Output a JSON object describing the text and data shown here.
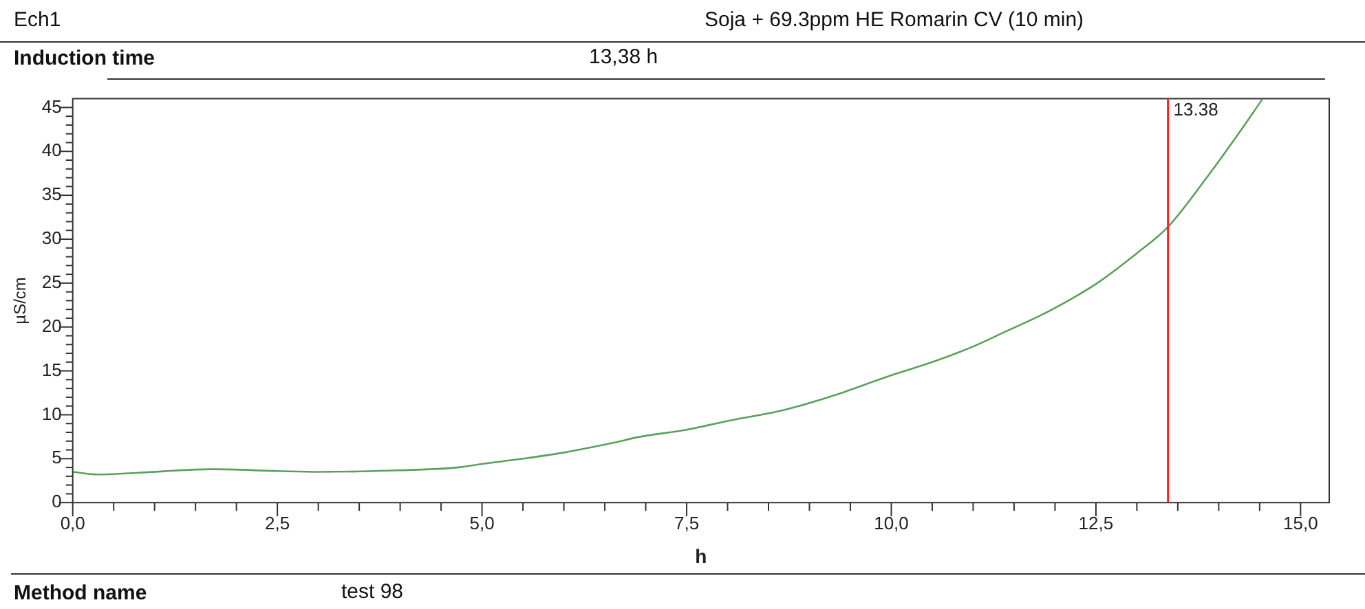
{
  "chart_data": {
    "type": "line",
    "title": "Ech1",
    "subtitle": "Soja + 69.3ppm HE Romarin CV (10 min)",
    "xlabel": "h",
    "ylabel": "µS/cm",
    "annotations": [
      "Induction time",
      "13,38 h",
      "Method name",
      "test 98"
    ],
    "x": [
      0,
      0.3,
      0.8,
      1.7,
      2.5,
      3.0,
      3.7,
      4.7,
      5.0,
      5.5,
      6.0,
      6.6,
      6.93,
      7.5,
      8.0,
      8.67,
      9.3,
      10.0,
      10.5,
      10.98,
      11.4,
      11.84,
      12.2,
      12.5,
      13.0,
      13.38,
      13.86,
      14.21,
      14.53
    ],
    "series": [
      {
        "color": "#5aa05a",
        "values": [
          3.5,
          3.2,
          3.4,
          3.8,
          3.6,
          3.5,
          3.6,
          4.0,
          4.4,
          5.0,
          5.7,
          6.8,
          7.5,
          8.3,
          9.3,
          10.5,
          12.2,
          14.5,
          16.0,
          17.7,
          19.5,
          21.4,
          23.2,
          24.9,
          28.4,
          31.4,
          37.1,
          41.6,
          45.9
        ]
      }
    ],
    "xlim": [
      0,
      15.35
    ],
    "ylim": [
      0,
      46
    ],
    "xticks": [
      {
        "value": 0,
        "label": "0,0"
      },
      {
        "value": 0.5,
        "label": null
      },
      {
        "value": 1,
        "label": null
      },
      {
        "value": 1.5,
        "label": null
      },
      {
        "value": 2,
        "label": null
      },
      {
        "value": 2.5,
        "label": "2,5"
      },
      {
        "value": 3,
        "label": null
      },
      {
        "value": 3.5,
        "label": null
      },
      {
        "value": 4,
        "label": null
      },
      {
        "value": 4.5,
        "label": null
      },
      {
        "value": 5,
        "label": "5,0"
      },
      {
        "value": 5.5,
        "label": null
      },
      {
        "value": 6,
        "label": null
      },
      {
        "value": 6.5,
        "label": null
      },
      {
        "value": 7,
        "label": null
      },
      {
        "value": 7.5,
        "label": "7,5"
      },
      {
        "value": 8,
        "label": null
      },
      {
        "value": 8.5,
        "label": null
      },
      {
        "value": 9,
        "label": null
      },
      {
        "value": 9.5,
        "label": null
      },
      {
        "value": 10,
        "label": "10,0"
      },
      {
        "value": 10.5,
        "label": null
      },
      {
        "value": 11,
        "label": null
      },
      {
        "value": 11.5,
        "label": null
      },
      {
        "value": 12,
        "label": null
      },
      {
        "value": 12.5,
        "label": "12,5"
      },
      {
        "value": 13,
        "label": null
      },
      {
        "value": 13.5,
        "label": null
      },
      {
        "value": 14,
        "label": null
      },
      {
        "value": 14.5,
        "label": null
      },
      {
        "value": 15,
        "label": "15,0"
      }
    ],
    "yticks": [
      0,
      {
        "value": 1,
        "label": null
      },
      {
        "value": 2,
        "label": null
      },
      {
        "value": 3,
        "label": null
      },
      {
        "value": 4,
        "label": null
      },
      5,
      {
        "value": 6,
        "label": null
      },
      {
        "value": 7,
        "label": null
      },
      {
        "value": 8,
        "label": null
      },
      {
        "value": 9,
        "label": null
      },
      10,
      {
        "value": 11,
        "label": null
      },
      {
        "value": 12,
        "label": null
      },
      {
        "value": 13,
        "label": null
      },
      {
        "value": 14,
        "label": null
      },
      15,
      {
        "value": 16,
        "label": null
      },
      {
        "value": 17,
        "label": null
      },
      {
        "value": 18,
        "label": null
      },
      {
        "value": 19,
        "label": null
      },
      20,
      {
        "value": 21,
        "label": null
      },
      {
        "value": 22,
        "label": null
      },
      {
        "value": 23,
        "label": null
      },
      {
        "value": 24,
        "label": null
      },
      25,
      {
        "value": 26,
        "label": null
      },
      {
        "value": 27,
        "label": null
      },
      {
        "value": 28,
        "label": null
      },
      {
        "value": 29,
        "label": null
      },
      30,
      {
        "value": 31,
        "label": null
      },
      {
        "value": 32,
        "label": null
      },
      {
        "value": 33,
        "label": null
      },
      {
        "value": 34,
        "label": null
      },
      35,
      {
        "value": 36,
        "label": null
      },
      {
        "value": 37,
        "label": null
      },
      {
        "value": 38,
        "label": null
      },
      {
        "value": 39,
        "label": null
      },
      40,
      {
        "value": 41,
        "label": null
      },
      {
        "value": 42,
        "label": null
      },
      {
        "value": 43,
        "label": null
      },
      {
        "value": 44,
        "label": null
      },
      45
    ],
    "ref_lines": [
      {
        "axis": "x",
        "value": 13.38,
        "label": "13.38",
        "color": "#ff2020"
      }
    ],
    "grid": false,
    "legend": false,
    "marker": "none",
    "line_style": "solid"
  }
}
